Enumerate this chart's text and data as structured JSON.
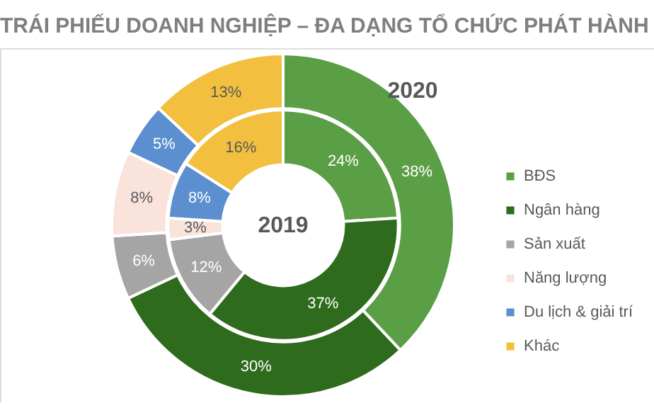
{
  "chart_data": {
    "type": "donut",
    "title": "TRÁI PHIẾU DOANH NGHIỆP – ĐA DẠNG TỔ CHỨC PHÁT HÀNH",
    "categories": [
      "BĐS",
      "Ngân hàng",
      "Sản xuất",
      "Năng lượng",
      "Du lịch & giải trí",
      "Khác"
    ],
    "colors": [
      "#5a9e45",
      "#2f6b1c",
      "#a5a5a5",
      "#f9e3db",
      "#5b8fd0",
      "#f2bf3e"
    ],
    "series": [
      {
        "name": "2019",
        "values": [
          24,
          37,
          12,
          3,
          8,
          16
        ],
        "value_labels": [
          "24%",
          "37%",
          "12%",
          "3%",
          "8%",
          "16%"
        ]
      },
      {
        "name": "2020",
        "values": [
          38,
          30,
          6,
          8,
          5,
          13
        ],
        "value_labels": [
          "38%",
          "30%",
          "6%",
          "8%",
          "5%",
          "13%"
        ]
      }
    ],
    "legend": "right"
  }
}
